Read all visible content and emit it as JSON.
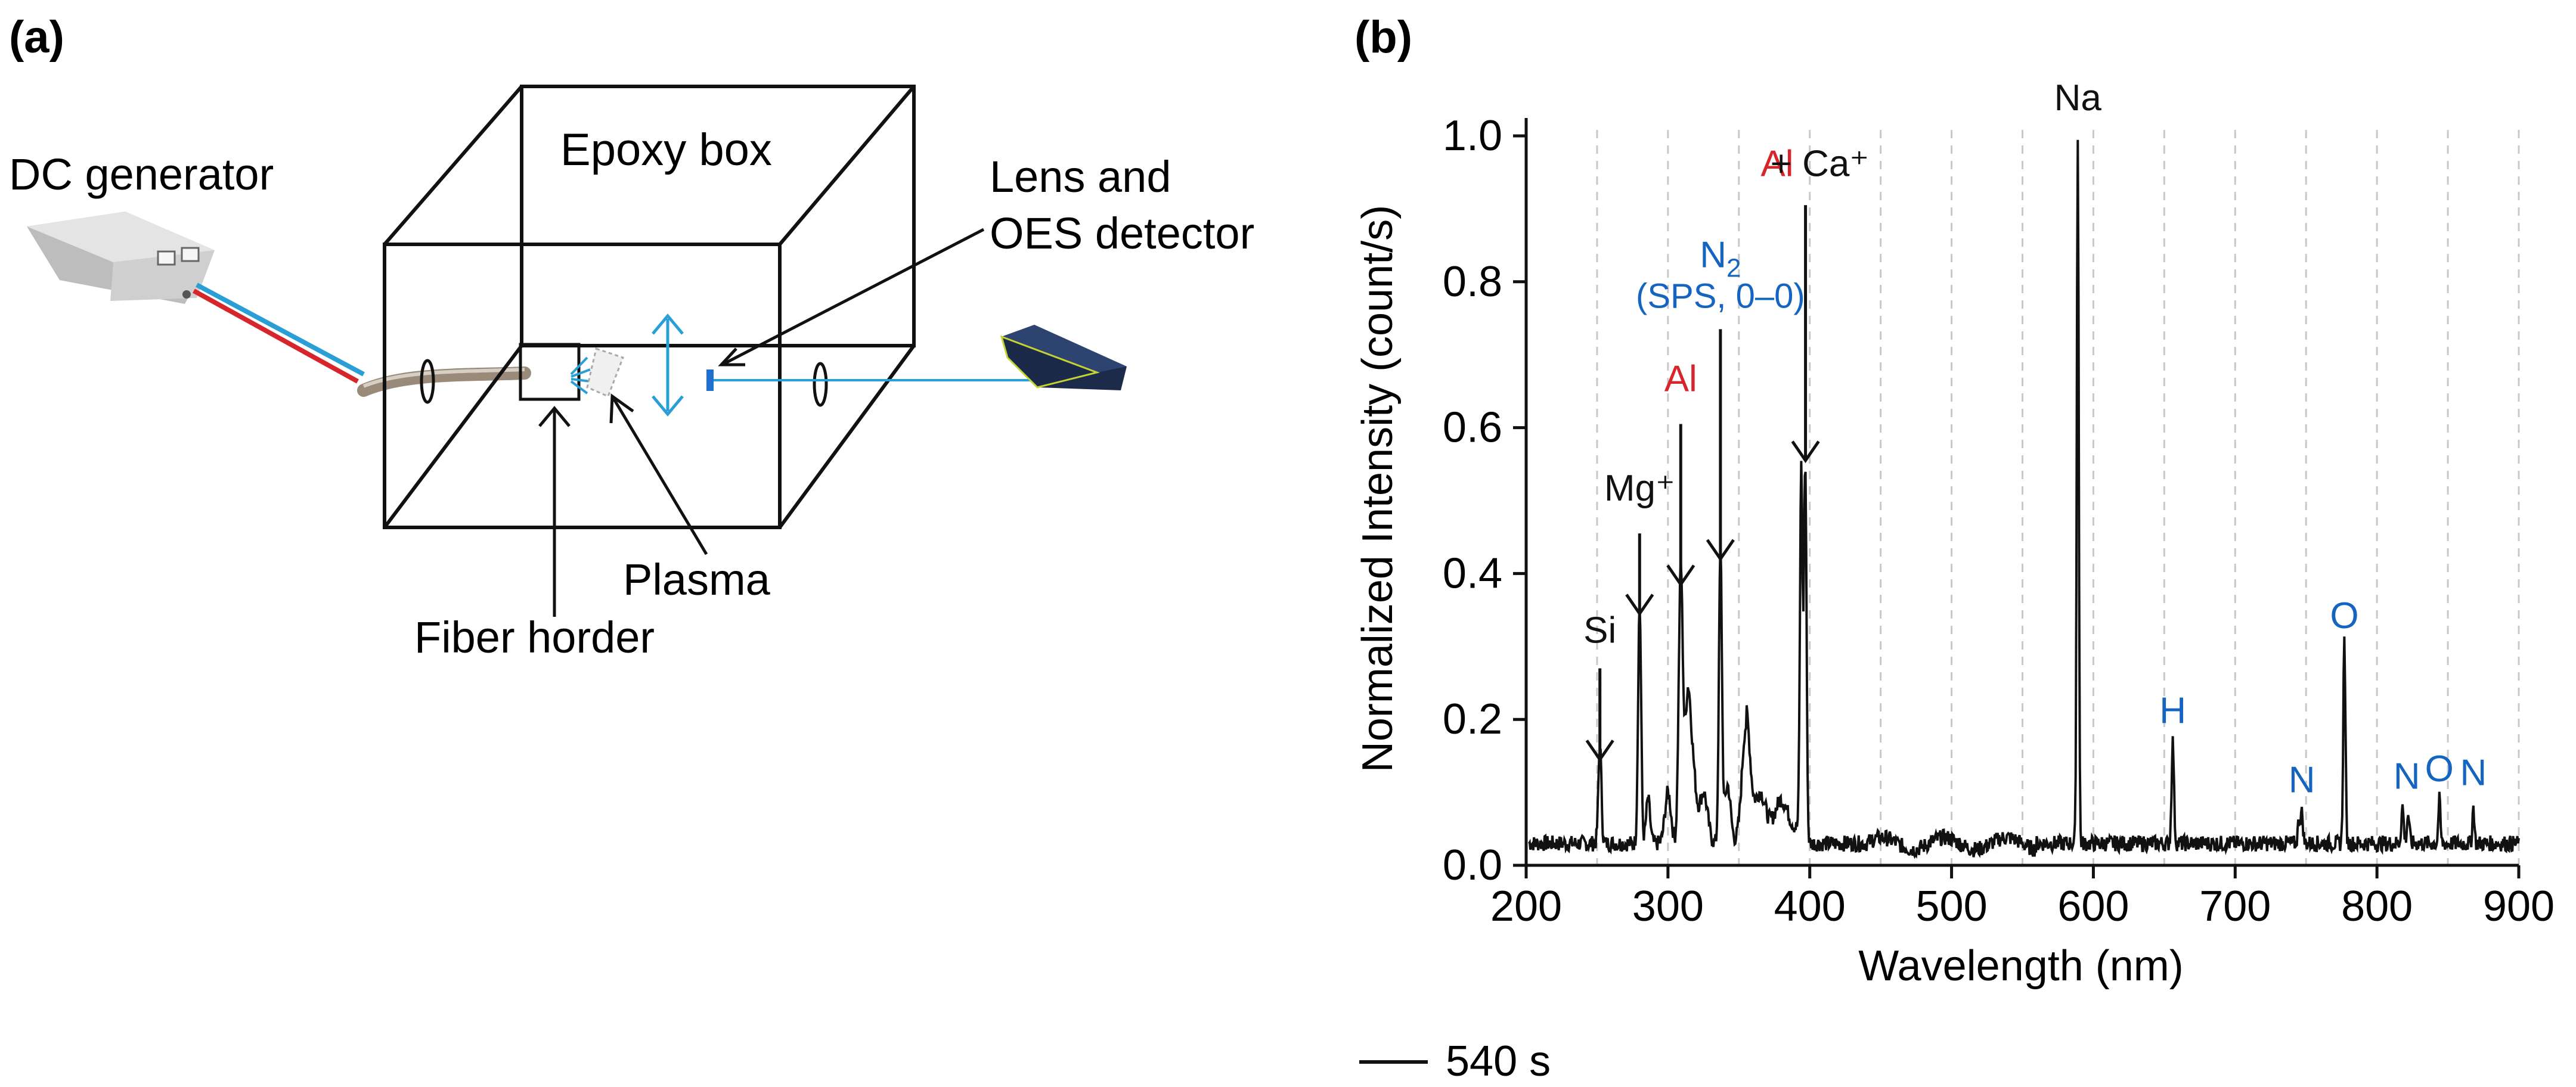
{
  "panel_a": {
    "label": "(a)",
    "epoxy_box": "Epoxy box",
    "dc_generator": "DC generator",
    "lens": "Lens and",
    "oes": "OES detector",
    "plasma": "Plasma",
    "fiber": "Fiber horder"
  },
  "colors": {
    "black": "#111111",
    "red": "#d6262b",
    "blue": "#1565c0",
    "beam": "#2a9fd6",
    "grid": "#c8c8c8"
  },
  "chart_data": {
    "type": "line",
    "panel_label": "(b)",
    "xlabel": "Wavelength (nm)",
    "ylabel": "Normalized Intensity (count/s)",
    "xlim": [
      200,
      900
    ],
    "ylim": [
      0,
      1.0
    ],
    "x_ticks": [
      "200",
      "300",
      "400",
      "500",
      "600",
      "700",
      "800",
      "900"
    ],
    "y_ticks": [
      "0.0",
      "0.2",
      "0.4",
      "0.6",
      "0.8",
      "1.0"
    ],
    "grid_x": [
      250,
      300,
      350,
      400,
      450,
      500,
      550,
      600,
      650,
      700,
      750,
      800,
      850,
      900
    ],
    "legend": {
      "label": "540 s",
      "placement": "bottom-left"
    },
    "baseline": 0.03,
    "peaks": [
      {
        "x": 252,
        "y": 0.135,
        "w": 1.5
      },
      {
        "x": 280,
        "y": 0.33,
        "w": 1.5
      },
      {
        "x": 286,
        "y": 0.06,
        "w": 2
      },
      {
        "x": 300,
        "y": 0.07,
        "w": 3
      },
      {
        "x": 309,
        "y": 0.37,
        "w": 2
      },
      {
        "x": 314,
        "y": 0.2,
        "w": 3
      },
      {
        "x": 318,
        "y": 0.08,
        "w": 3
      },
      {
        "x": 325,
        "y": 0.07,
        "w": 4
      },
      {
        "x": 337,
        "y": 0.4,
        "w": 1.5
      },
      {
        "x": 342,
        "y": 0.08,
        "w": 3
      },
      {
        "x": 355,
        "y": 0.16,
        "w": 4
      },
      {
        "x": 365,
        "y": 0.05,
        "w": 5
      },
      {
        "x": 380,
        "y": 0.04,
        "w": 6
      },
      {
        "x": 394,
        "y": 0.5,
        "w": 1.3
      },
      {
        "x": 396.8,
        "y": 0.52,
        "w": 1.3
      },
      {
        "x": 589,
        "y": 0.97,
        "w": 1.0
      },
      {
        "x": 656,
        "y": 0.14,
        "w": 1.2
      },
      {
        "x": 745,
        "y": 0.03,
        "w": 1.2
      },
      {
        "x": 747,
        "y": 0.04,
        "w": 1.2
      },
      {
        "x": 777,
        "y": 0.28,
        "w": 1.1
      },
      {
        "x": 818,
        "y": 0.05,
        "w": 1.2
      },
      {
        "x": 822,
        "y": 0.04,
        "w": 1.2
      },
      {
        "x": 844,
        "y": 0.06,
        "w": 1.0
      },
      {
        "x": 868,
        "y": 0.05,
        "w": 1.0
      }
    ],
    "annotations": [
      {
        "id": "si",
        "text": "Si",
        "color": "black",
        "x": 252,
        "text_y": 0.305,
        "arrow_from": 0.27,
        "arrow_to": 0.145
      },
      {
        "id": "mg",
        "text": "Mg⁺",
        "color": "black",
        "x": 280,
        "text_y": 0.5,
        "arrow_from": 0.455,
        "arrow_to": 0.345
      },
      {
        "id": "al1",
        "text": "Al",
        "color": "red",
        "x": 309,
        "text_y": 0.65,
        "arrow_from": 0.605,
        "arrow_to": 0.385
      },
      {
        "id": "n2",
        "text": "N",
        "sub": "2",
        "line2": "(SPS, 0–0)",
        "color": "blue",
        "x": 337,
        "text_y": 0.82,
        "arrow_from": 0.735,
        "arrow_to": 0.42
      },
      {
        "id": "alca_al",
        "text": "Al",
        "color": "red",
        "x": 377,
        "text_y": 0.945
      },
      {
        "id": "alca_ca",
        "text": "+ Ca⁺",
        "color": "black",
        "x": 407,
        "text_y": 0.945,
        "arrow_x": 397,
        "arrow_from": 0.905,
        "arrow_to": 0.555
      },
      {
        "id": "na",
        "text": "Na",
        "color": "black",
        "x": 589,
        "text_y": 1.035
      },
      {
        "id": "h",
        "text": "H",
        "color": "blue",
        "x": 656,
        "text_y": 0.195
      },
      {
        "id": "n1",
        "text": "N",
        "color": "blue",
        "x": 747,
        "text_y": 0.1
      },
      {
        "id": "o1",
        "text": "O",
        "color": "blue",
        "x": 777,
        "text_y": 0.325
      },
      {
        "id": "n2b",
        "text": "N",
        "color": "blue",
        "x": 821,
        "text_y": 0.105
      },
      {
        "id": "o2",
        "text": "O",
        "color": "blue",
        "x": 844,
        "text_y": 0.115
      },
      {
        "id": "n3",
        "text": "N",
        "color": "blue",
        "x": 868,
        "text_y": 0.11
      }
    ]
  }
}
